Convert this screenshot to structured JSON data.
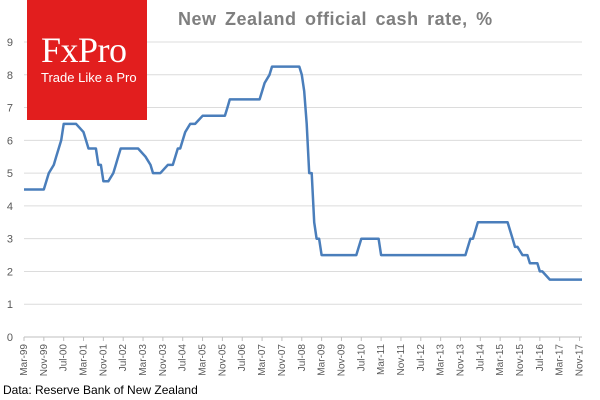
{
  "chart_data": {
    "type": "line",
    "title": "New Zealand official cash rate, %",
    "source": "Data: Reserve Bank of New Zealand",
    "ylim": [
      0,
      9
    ],
    "yticks": [
      0,
      1,
      2,
      3,
      4,
      5,
      6,
      7,
      8,
      9
    ],
    "xlim": [
      "1999-03",
      "2017-12"
    ],
    "xtick_labels": [
      "Mar-99",
      "Nov-99",
      "Jul-00",
      "Mar-01",
      "Nov-01",
      "Jul-02",
      "Mar-03",
      "Nov-03",
      "Jul-04",
      "Mar-05",
      "Nov-05",
      "Jul-06",
      "Mar-07",
      "Nov-07",
      "Jul-08",
      "Mar-09",
      "Nov-09",
      "Jul-10",
      "Mar-11",
      "Nov-11",
      "Jul-12",
      "Mar-13",
      "Nov-13",
      "Jul-14",
      "Mar-15",
      "Nov-15",
      "Jul-16",
      "Mar-17",
      "Nov-17"
    ],
    "grid": "horizontal",
    "legend": "none",
    "series": [
      {
        "color": "#4a7ebb",
        "x": [
          "1999-03",
          "1999-11",
          "2000-01",
          "2000-03",
          "2000-04",
          "2000-05",
          "2000-06",
          "2000-07",
          "2000-12",
          "2001-03",
          "2001-04",
          "2001-05",
          "2001-08",
          "2001-09",
          "2001-10",
          "2001-11",
          "2002-01",
          "2002-03",
          "2002-04",
          "2002-05",
          "2002-06",
          "2002-07",
          "2003-01",
          "2003-04",
          "2003-06",
          "2003-07",
          "2003-09",
          "2003-10",
          "2004-01",
          "2004-03",
          "2004-04",
          "2004-05",
          "2004-06",
          "2004-07",
          "2004-08",
          "2004-10",
          "2004-11",
          "2004-12",
          "2005-03",
          "2005-12",
          "2006-01",
          "2006-02",
          "2006-03",
          "2007-01",
          "2007-02",
          "2007-03",
          "2007-04",
          "2007-06",
          "2007-07",
          "2008-06",
          "2008-07",
          "2008-08",
          "2008-09",
          "2008-10",
          "2008-11",
          "2008-12",
          "2009-01",
          "2009-02",
          "2009-03",
          "2009-04",
          "2010-05",
          "2010-06",
          "2010-07",
          "2010-08",
          "2011-02",
          "2011-03",
          "2014-01",
          "2014-02",
          "2014-03",
          "2014-04",
          "2014-05",
          "2014-06",
          "2014-07",
          "2015-06",
          "2015-07",
          "2015-08",
          "2015-09",
          "2015-10",
          "2015-12",
          "2016-02",
          "2016-03",
          "2016-06",
          "2016-07",
          "2016-08",
          "2016-11",
          "2016-12",
          "2017-12"
        ],
        "values": [
          4.5,
          4.5,
          5.0,
          5.25,
          5.5,
          5.75,
          6.0,
          6.5,
          6.5,
          6.25,
          6.0,
          5.75,
          5.75,
          5.25,
          5.25,
          4.75,
          4.75,
          5.0,
          5.25,
          5.5,
          5.75,
          5.75,
          5.75,
          5.5,
          5.25,
          5.0,
          5.0,
          5.0,
          5.25,
          5.25,
          5.5,
          5.75,
          5.75,
          6.0,
          6.25,
          6.5,
          6.5,
          6.5,
          6.75,
          6.75,
          7.0,
          7.25,
          7.25,
          7.25,
          7.25,
          7.5,
          7.75,
          8.0,
          8.25,
          8.25,
          8.0,
          7.5,
          6.5,
          5.0,
          5.0,
          3.5,
          3.0,
          3.0,
          2.5,
          2.5,
          2.5,
          2.75,
          3.0,
          3.0,
          3.0,
          2.5,
          2.5,
          2.75,
          3.0,
          3.0,
          3.25,
          3.5,
          3.5,
          3.5,
          3.25,
          3.0,
          2.75,
          2.75,
          2.5,
          2.5,
          2.25,
          2.25,
          2.0,
          2.0,
          1.75,
          1.75,
          1.75
        ]
      }
    ]
  },
  "logo": {
    "main": "FxPro",
    "tagline": "Trade Like a Pro",
    "color": "#e21e1e"
  }
}
